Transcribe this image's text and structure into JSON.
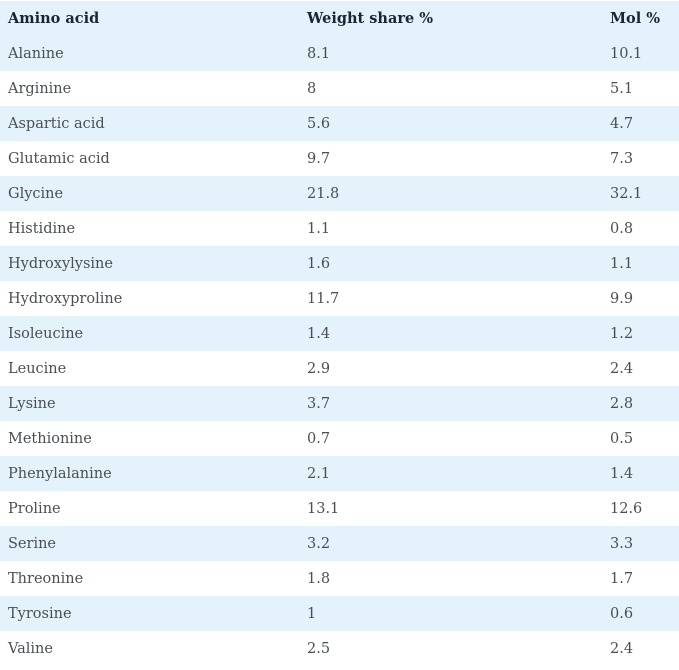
{
  "table": {
    "headers": [
      "Amino acid",
      "Weight share %",
      "Mol %"
    ],
    "rows": [
      [
        "Alanine",
        "8.1",
        "10.1"
      ],
      [
        "Arginine",
        "8",
        "5.1"
      ],
      [
        "Aspartic acid",
        "5.6",
        "4.7"
      ],
      [
        "Glutamic acid",
        "9.7",
        "7.3"
      ],
      [
        "Glycine",
        "21.8",
        "32.1"
      ],
      [
        "Histidine",
        "1.1",
        "0.8"
      ],
      [
        "Hydroxylysine",
        "1.6",
        "1.1"
      ],
      [
        "Hydroxyproline",
        "11.7",
        "9.9"
      ],
      [
        "Isoleucine",
        "1.4",
        "1.2"
      ],
      [
        "Leucine",
        "2.9",
        "2.4"
      ],
      [
        "Lysine",
        "3.7",
        "2.8"
      ],
      [
        "Methionine",
        "0.7",
        "0.5"
      ],
      [
        "Phenylalanine",
        "2.1",
        "1.4"
      ],
      [
        "Proline",
        "13.1",
        "12.6"
      ],
      [
        "Serine",
        "3.2",
        "3.3"
      ],
      [
        "Threonine",
        "1.8",
        "1.7"
      ],
      [
        "Tyrosine",
        "1",
        "0.6"
      ],
      [
        "Valine",
        "2.5",
        "2.4"
      ]
    ]
  },
  "colors": {
    "stripe": "#e4f2fc",
    "header_text": "#1c2633",
    "body_text": "#4a4f55"
  }
}
